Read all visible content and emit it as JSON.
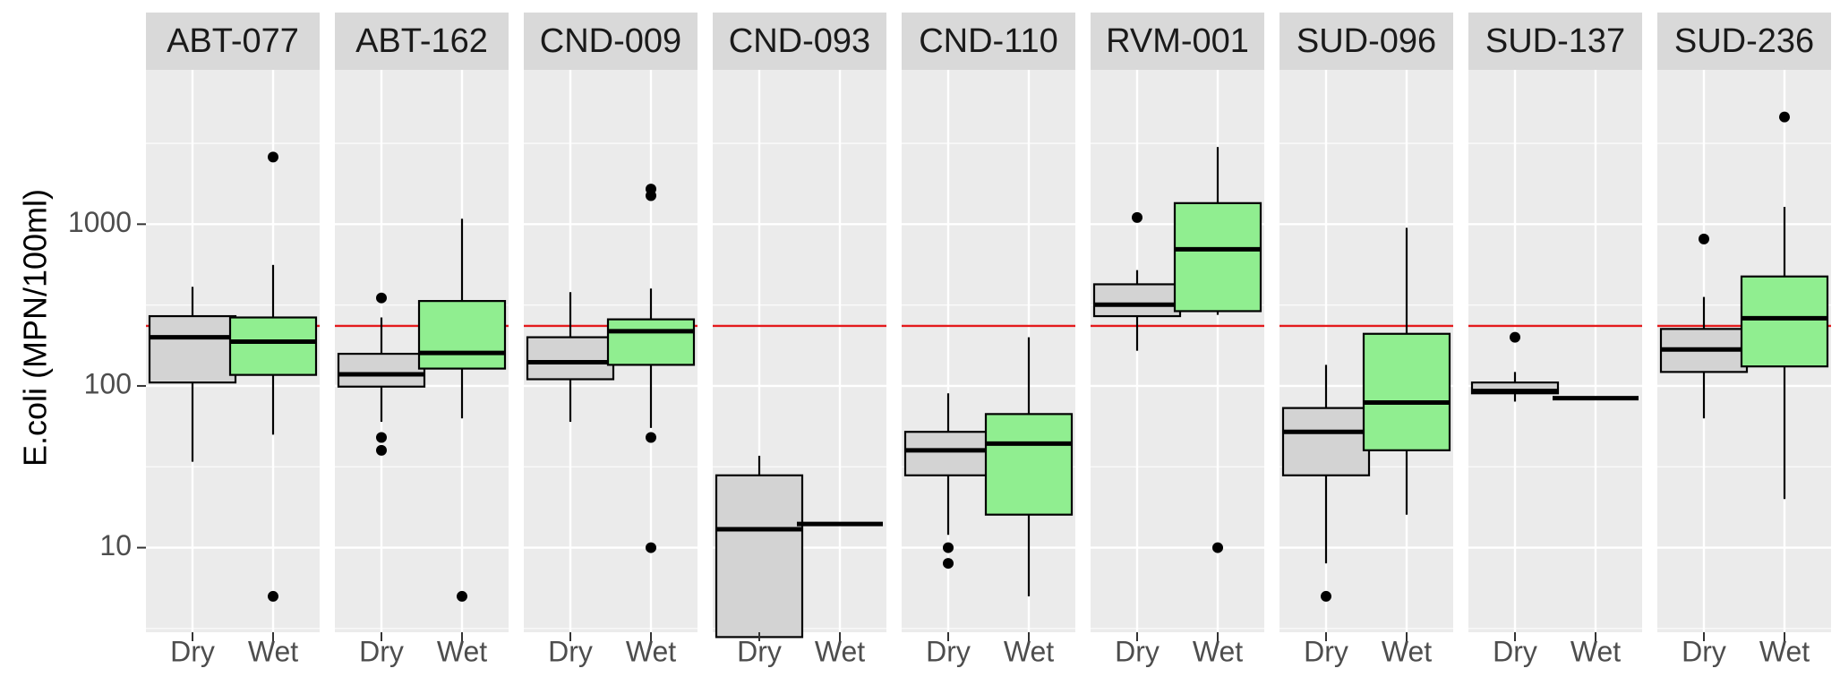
{
  "chart_data": {
    "type": "boxplot",
    "title": "",
    "xlabel": "",
    "ylabel": "E.coli (MPN/100ml)",
    "y_scale": "log10",
    "ylim": [
      3,
      9000
    ],
    "y_ticks": [
      10,
      100,
      1000
    ],
    "y_tick_labels": [
      "10",
      "100",
      "1000"
    ],
    "grid": true,
    "reference_line": {
      "y": 235,
      "color": "#e41a1c"
    },
    "categories": [
      "Dry",
      "Wet"
    ],
    "fill_colors": {
      "Dry": "#d3d3d3",
      "Wet": "#90ee90"
    },
    "panels": [
      {
        "name": "ABT-077",
        "boxes": [
          {
            "category": "Dry",
            "whisker_low": 34,
            "q1": 105,
            "median": 200,
            "q3": 270,
            "whisker_high": 410,
            "outliers": []
          },
          {
            "category": "Wet",
            "whisker_low": 50,
            "q1": 117,
            "median": 188,
            "q3": 265,
            "whisker_high": 560,
            "outliers": [
              5,
              2600
            ]
          }
        ]
      },
      {
        "name": "ABT-162",
        "boxes": [
          {
            "category": "Dry",
            "whisker_low": 60,
            "q1": 99,
            "median": 118,
            "q3": 158,
            "whisker_high": 265,
            "outliers": [
              40,
              48,
              350
            ]
          },
          {
            "category": "Wet",
            "whisker_low": 63,
            "q1": 128,
            "median": 160,
            "q3": 335,
            "whisker_high": 1080,
            "outliers": [
              5
            ]
          }
        ]
      },
      {
        "name": "CND-009",
        "boxes": [
          {
            "category": "Dry",
            "whisker_low": 60,
            "q1": 110,
            "median": 140,
            "q3": 200,
            "whisker_high": 380,
            "outliers": []
          },
          {
            "category": "Wet",
            "whisker_low": 55,
            "q1": 135,
            "median": 218,
            "q3": 258,
            "whisker_high": 400,
            "outliers": [
              10,
              48,
              1500,
              1650
            ]
          }
        ]
      },
      {
        "name": "CND-093",
        "boxes": [
          {
            "category": "Dry",
            "whisker_low": 2.8,
            "q1": 2.8,
            "median": 13,
            "q3": 28,
            "whisker_high": 37,
            "outliers": []
          },
          {
            "category": "Wet",
            "whisker_low": 14,
            "q1": 14,
            "median": 14,
            "q3": 14,
            "whisker_high": 14,
            "outliers": []
          }
        ]
      },
      {
        "name": "CND-110",
        "boxes": [
          {
            "category": "Dry",
            "whisker_low": 12,
            "q1": 28,
            "median": 40,
            "q3": 52,
            "whisker_high": 90,
            "outliers": [
              8,
              10
            ]
          },
          {
            "category": "Wet",
            "whisker_low": 5,
            "q1": 16,
            "median": 44,
            "q3": 67,
            "whisker_high": 200,
            "outliers": []
          }
        ]
      },
      {
        "name": "RVM-001",
        "boxes": [
          {
            "category": "Dry",
            "whisker_low": 165,
            "q1": 270,
            "median": 318,
            "q3": 425,
            "whisker_high": 520,
            "outliers": [
              1100
            ]
          },
          {
            "category": "Wet",
            "whisker_low": 275,
            "q1": 290,
            "median": 700,
            "q3": 1350,
            "whisker_high": 3000,
            "outliers": [
              10
            ]
          }
        ]
      },
      {
        "name": "SUD-096",
        "boxes": [
          {
            "category": "Dry",
            "whisker_low": 8,
            "q1": 28,
            "median": 52,
            "q3": 73,
            "whisker_high": 135,
            "outliers": [
              5
            ]
          },
          {
            "category": "Wet",
            "whisker_low": 16,
            "q1": 40,
            "median": 79,
            "q3": 210,
            "whisker_high": 950,
            "outliers": []
          }
        ]
      },
      {
        "name": "SUD-137",
        "boxes": [
          {
            "category": "Dry",
            "whisker_low": 80,
            "q1": 90,
            "median": 93,
            "q3": 105,
            "whisker_high": 122,
            "outliers": [
              200
            ]
          },
          {
            "category": "Wet",
            "whisker_low": 84,
            "q1": 84,
            "median": 84,
            "q3": 84,
            "whisker_high": 84,
            "outliers": []
          }
        ]
      },
      {
        "name": "SUD-236",
        "boxes": [
          {
            "category": "Dry",
            "whisker_low": 63,
            "q1": 122,
            "median": 168,
            "q3": 225,
            "whisker_high": 355,
            "outliers": [
              810
            ]
          },
          {
            "category": "Wet",
            "whisker_low": 20,
            "q1": 132,
            "median": 262,
            "q3": 475,
            "whisker_high": 1280,
            "outliers": [
              4600
            ]
          }
        ]
      }
    ]
  }
}
